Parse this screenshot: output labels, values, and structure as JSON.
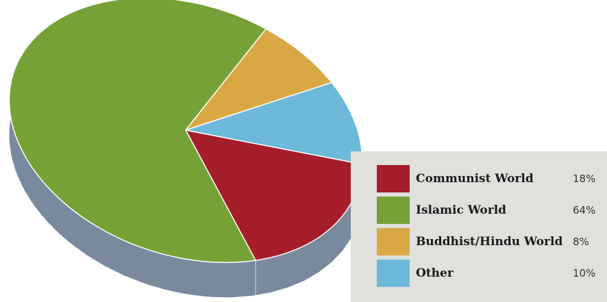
{
  "chart_data": {
    "type": "pie",
    "style": "3d",
    "slices": [
      {
        "label": "Communist World",
        "value": 18,
        "value_label": "18%",
        "color": "#a51e2a"
      },
      {
        "label": "Islamic World",
        "value": 64,
        "value_label": "64%",
        "color": "#76a136"
      },
      {
        "label": "Buddhist/Hindu World",
        "value": 8,
        "value_label": "8%",
        "color": "#d9a844"
      },
      {
        "label": "Other",
        "value": 10,
        "value_label": "10%",
        "color": "#6db9da"
      }
    ],
    "side_color": "#7a8a9e",
    "legend": {
      "placement": "bottom-right",
      "background": "#e0e1dd"
    }
  }
}
